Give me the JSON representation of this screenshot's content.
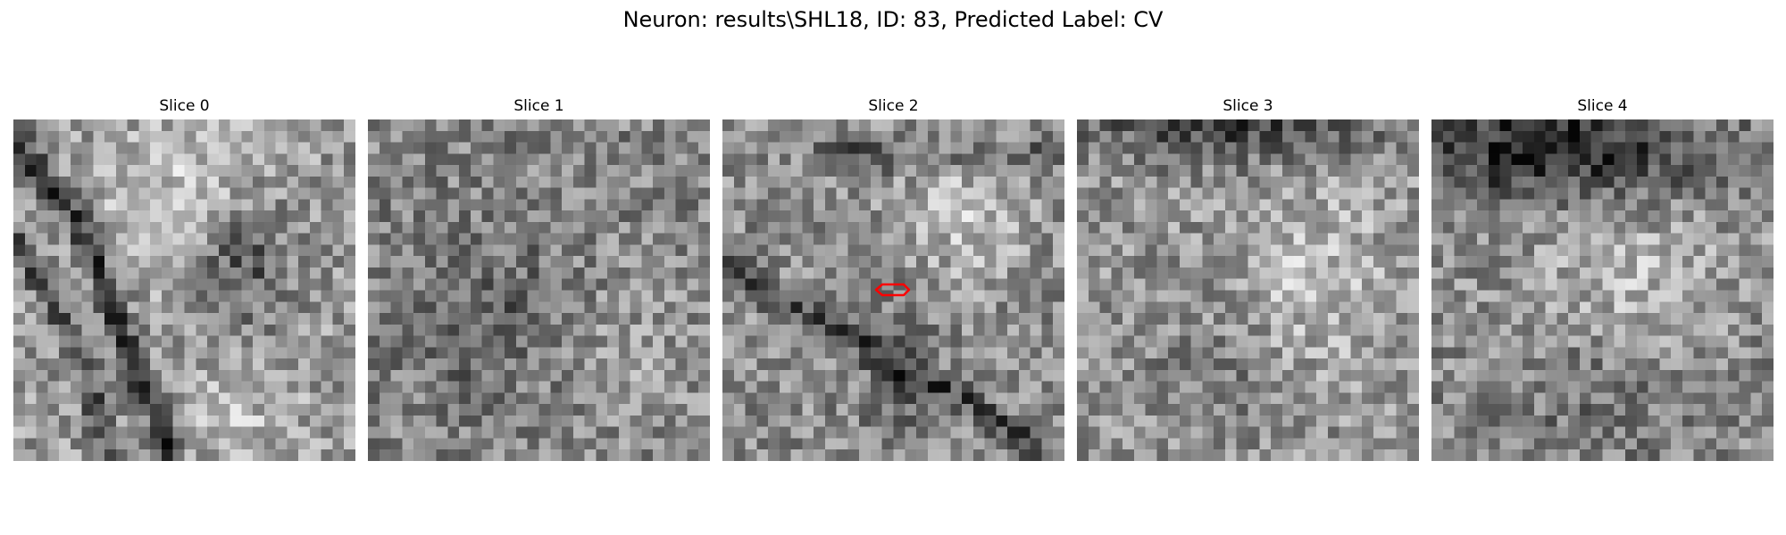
{
  "figure": {
    "title": "Neuron: results\\SHL18, ID: 83, Predicted Label: CV",
    "colormap": "gray",
    "roi_color": "#ff0000"
  },
  "panels": [
    {
      "title": "Slice 0"
    },
    {
      "title": "Slice 1"
    },
    {
      "title": "Slice 2"
    },
    {
      "title": "Slice 3"
    },
    {
      "title": "Slice 4"
    }
  ]
}
